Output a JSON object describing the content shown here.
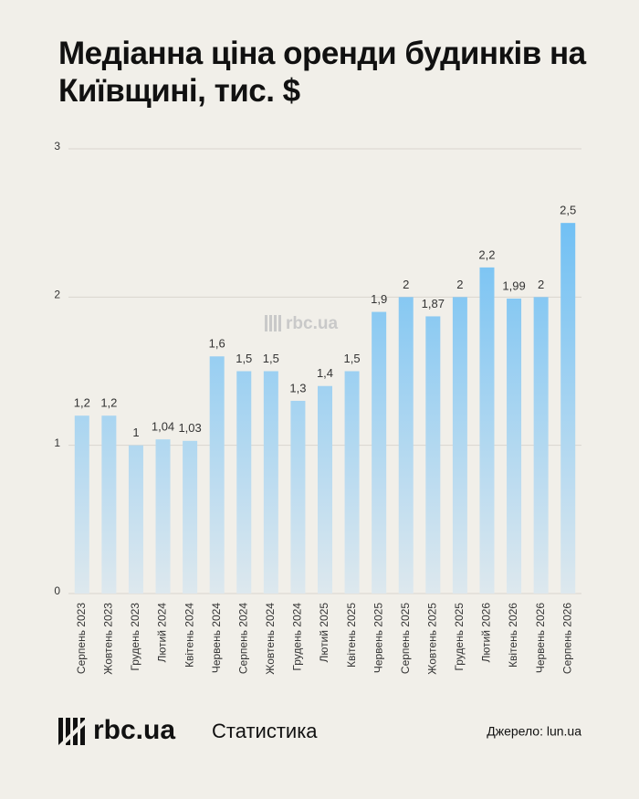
{
  "chart_data": {
    "type": "bar",
    "title": "Медіанна ціна оренди будинків на Київщині, тис. $",
    "categories": [
      "Серпень 2023",
      "Жовтень 2023",
      "Грудень 2023",
      "Лютий 2024",
      "Квітень 2024",
      "Червень 2024",
      "Серпень 2024",
      "Жовтень 2024",
      "Грудень 2024",
      "Лютий 2025",
      "Квітень 2025",
      "Червень 2025",
      "Серпень 2025",
      "Жовтень 2025",
      "Грудень 2025",
      "Лютий 2026",
      "Квітень 2026",
      "Червень 2026",
      "Серпень 2026"
    ],
    "values": [
      1.2,
      1.2,
      1,
      1.04,
      1.03,
      1.6,
      1.5,
      1.5,
      1.3,
      1.4,
      1.5,
      1.9,
      2,
      1.87,
      2,
      2.2,
      1.99,
      2,
      2.5
    ],
    "value_labels": [
      "1,2",
      "1,2",
      "1",
      "1,04",
      "1,03",
      "1,6",
      "1,5",
      "1,5",
      "1,3",
      "1,4",
      "1,5",
      "1,9",
      "2",
      "1,87",
      "2",
      "2,2",
      "1,99",
      "2",
      "2,5"
    ],
    "color": "#5bb8f5",
    "ylim": [
      0,
      3
    ],
    "yticks": [
      0,
      1,
      2,
      3
    ],
    "grid": true
  },
  "watermark": "rbc.ua",
  "footer": {
    "logo": "rbc.ua",
    "section": "Статистика",
    "source": "Джерело: lun.ua"
  }
}
